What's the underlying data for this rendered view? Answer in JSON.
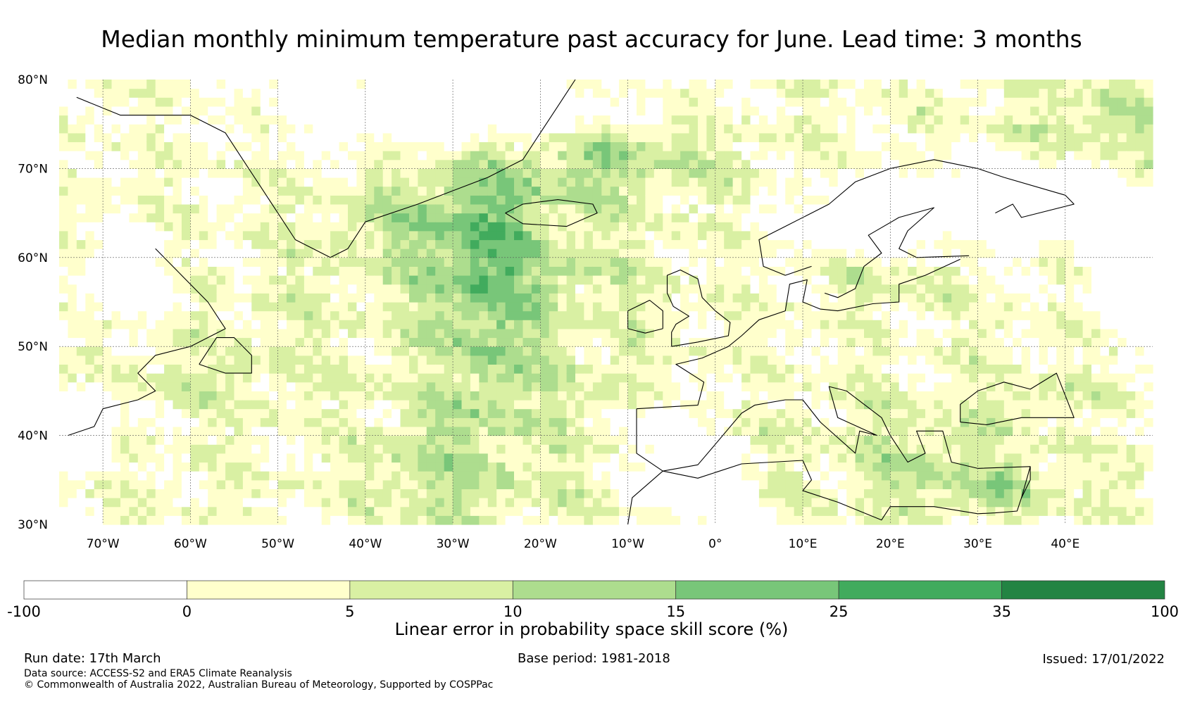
{
  "title": "Median monthly minimum temperature past accuracy for June. Lead time: 3 months",
  "map": {
    "lat_range": [
      30,
      80
    ],
    "lon_range": [
      -75,
      50
    ],
    "lat_ticks": [
      "30°N",
      "40°N",
      "50°N",
      "60°N",
      "70°N",
      "80°N"
    ],
    "lon_ticks": [
      "70°W",
      "60°W",
      "50°W",
      "40°W",
      "30°W",
      "20°W",
      "10°W",
      "0°",
      "10°E",
      "20°E",
      "30°E",
      "40°E"
    ],
    "palette": [
      "#ffffff",
      "#ffffcc",
      "#d9f0a3",
      "#addd8e",
      "#78c679",
      "#41ab5d",
      "#238443"
    ],
    "coastline_color": "#000000",
    "grid_color": "#555555"
  },
  "colorbar": {
    "tick_labels": [
      "-100",
      "0",
      "5",
      "10",
      "15",
      "25",
      "35",
      "100"
    ],
    "colors": [
      "#ffffff",
      "#ffffcc",
      "#d9f0a3",
      "#addd8e",
      "#78c679",
      "#41ab5d",
      "#238443"
    ],
    "label": "Linear error in probability space skill score (%)"
  },
  "footer": {
    "run_date": "Run date: 17th March",
    "base_period": "Base period: 1981-2018",
    "issued": "Issued: 17/01/2022",
    "data_source": "Data source: ACCESS-S2 and ERA5 Climate Reanalysis",
    "copyright": "© Commonwealth of Australia 2022, Australian Bureau of Meteorology, Supported by COSPPac"
  }
}
